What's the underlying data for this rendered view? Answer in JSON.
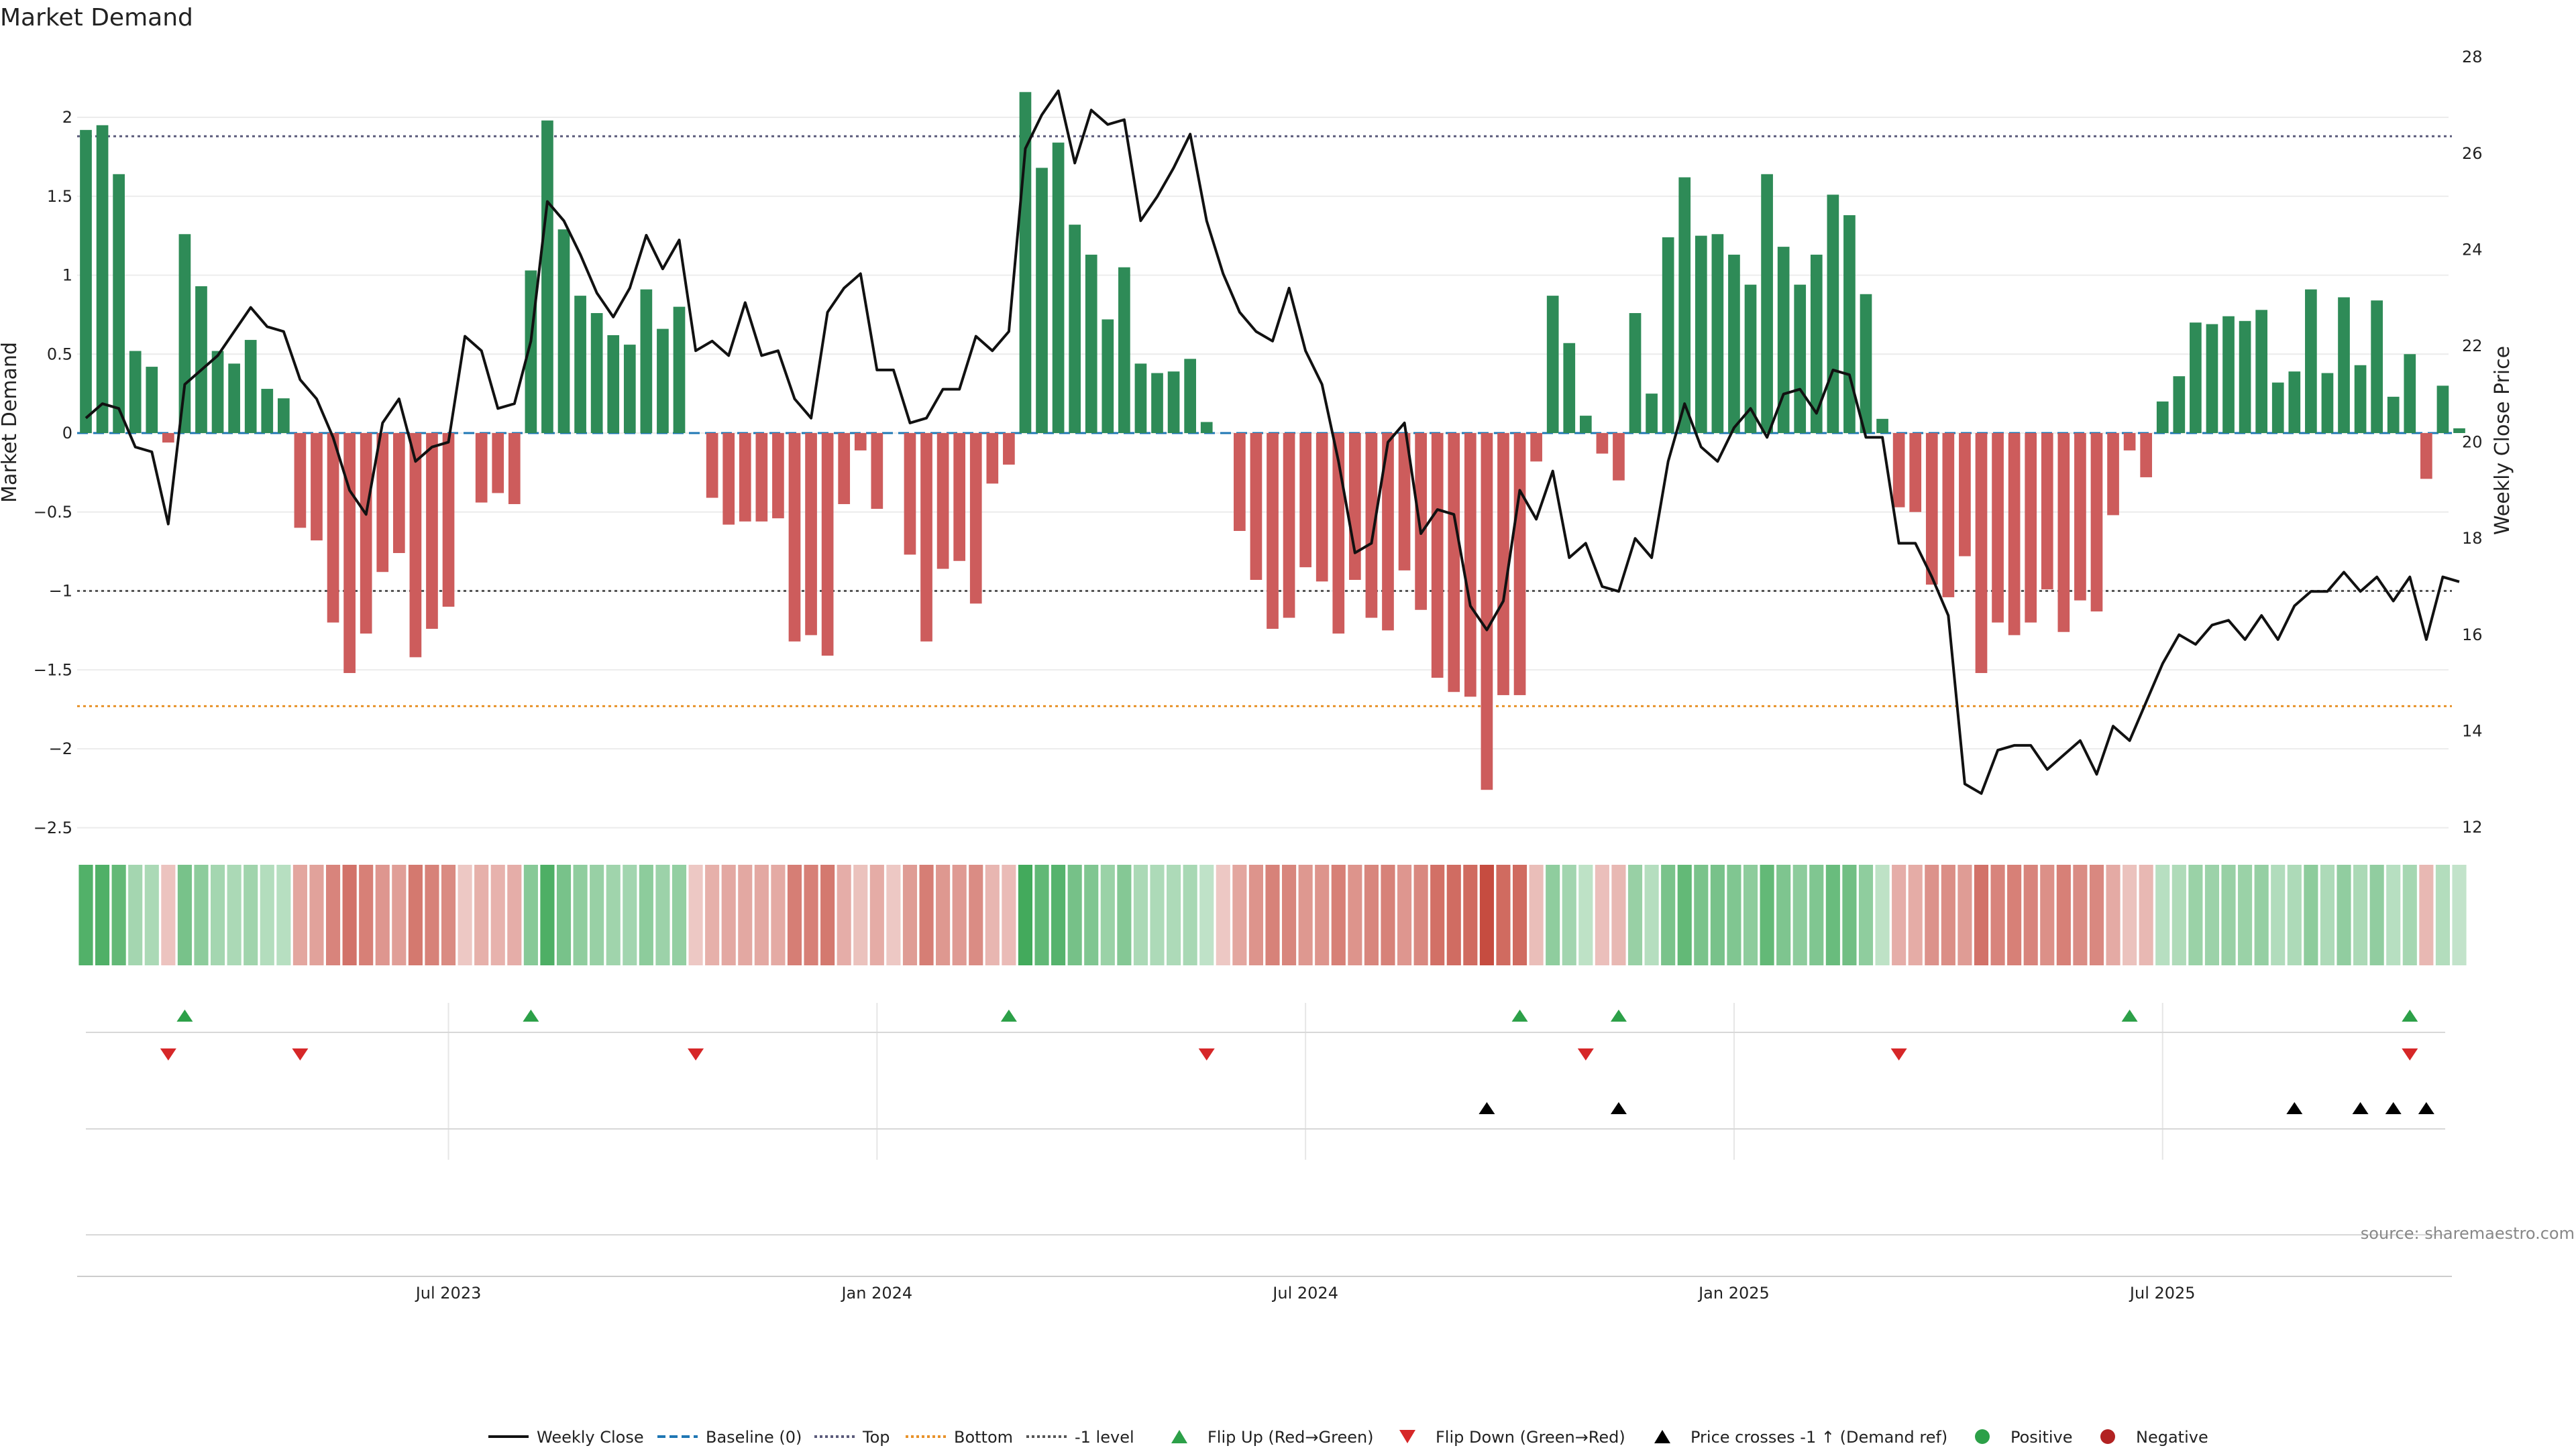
{
  "chart_data": {
    "type": "bar",
    "title": "Market Demand",
    "ylabel_left": "Market Demand",
    "ylabel_right": "Weekly Close Price",
    "ylim_left": [
      -2.5,
      2.4
    ],
    "ylim_right": [
      12,
      28
    ],
    "yticks_left": [
      "2",
      "1.5",
      "1",
      "0.5",
      "0",
      "−0.5",
      "−1",
      "−1.5",
      "−2",
      "−2.5"
    ],
    "yticks_left_values": [
      2,
      1.5,
      1,
      0.5,
      0,
      -0.5,
      -1,
      -1.5,
      -2,
      -2.5
    ],
    "yticks_right": [
      "28",
      "26",
      "24",
      "22",
      "20",
      "18",
      "16",
      "14",
      "12"
    ],
    "yticks_right_values": [
      28,
      26,
      24,
      22,
      20,
      18,
      16,
      14,
      12
    ],
    "xtick_labels": [
      "Jul 2023",
      "Jan 2024",
      "Jul 2024",
      "Jan 2025",
      "Jul 2025"
    ],
    "xtick_weeks": [
      22,
      48,
      74,
      100,
      126
    ],
    "reference_lines": {
      "top": 1.88,
      "bottom": -1.73,
      "minus_one": -1.0,
      "baseline": 0
    },
    "demand": [
      1.92,
      1.95,
      1.64,
      0.52,
      0.42,
      -0.06,
      1.26,
      0.93,
      0.52,
      0.44,
      0.59,
      0.28,
      0.22,
      -0.6,
      -0.68,
      -1.2,
      -1.52,
      -1.27,
      -0.88,
      -0.76,
      -1.42,
      -1.24,
      -1.1,
      0,
      -0.44,
      -0.38,
      -0.45,
      1.03,
      1.98,
      1.29,
      0.87,
      0.76,
      0.62,
      0.56,
      0.91,
      0.66,
      0.8,
      0,
      -0.41,
      -0.58,
      -0.56,
      -0.56,
      -0.54,
      -1.32,
      -1.28,
      -1.41,
      -0.45,
      -0.11,
      -0.48,
      0,
      -0.77,
      -1.32,
      -0.86,
      -0.81,
      -1.08,
      -0.32,
      -0.2,
      2.16,
      1.68,
      1.84,
      1.32,
      1.13,
      0.72,
      1.05,
      0.44,
      0.38,
      0.39,
      0.47,
      0.07,
      0,
      -0.62,
      -0.93,
      -1.24,
      -1.17,
      -0.85,
      -0.94,
      -1.27,
      -0.93,
      -1.17,
      -1.25,
      -0.87,
      -1.12,
      -1.55,
      -1.64,
      -1.67,
      -2.26,
      -1.66,
      -1.66,
      -0.18,
      0.87,
      0.57,
      0.11,
      -0.13,
      -0.3,
      0.76,
      0.25,
      1.24,
      1.62,
      1.25,
      1.26,
      1.13,
      0.94,
      1.64,
      1.18,
      0.94,
      1.13,
      1.51,
      1.38,
      0.88,
      0.09,
      -0.47,
      -0.5,
      -0.96,
      -1.04,
      -0.78,
      -1.52,
      -1.2,
      -1.28,
      -1.2,
      -0.99,
      -1.26,
      -1.06,
      -1.13,
      -0.52,
      -0.11,
      -0.28,
      0.2,
      0.36,
      0.7,
      0.69,
      0.74,
      0.71,
      0.78,
      0.32,
      0.39,
      0.91,
      0.38,
      0.86,
      0.43,
      0.84,
      0.23,
      0.5,
      -0.29,
      0.3,
      0.03
    ],
    "price": [
      20.5,
      20.8,
      20.7,
      19.9,
      19.8,
      18.3,
      21.2,
      21.5,
      21.8,
      22.3,
      22.8,
      22.4,
      22.3,
      21.3,
      20.9,
      20.1,
      19.0,
      18.5,
      20.4,
      20.9,
      19.6,
      19.9,
      20.0,
      22.2,
      21.9,
      20.7,
      20.8,
      22.1,
      25.0,
      24.6,
      23.9,
      23.1,
      22.6,
      23.2,
      24.3,
      23.6,
      24.2,
      21.9,
      22.1,
      21.8,
      22.9,
      21.8,
      21.9,
      20.9,
      20.5,
      22.7,
      23.2,
      23.5,
      21.5,
      21.5,
      20.4,
      20.5,
      21.1,
      21.1,
      22.2,
      21.9,
      22.3,
      26.1,
      26.8,
      27.3,
      25.8,
      26.9,
      26.6,
      26.7,
      24.6,
      25.1,
      25.7,
      26.4,
      24.6,
      23.5,
      22.7,
      22.3,
      22.1,
      23.2,
      21.9,
      21.2,
      19.6,
      17.7,
      17.9,
      20.0,
      20.4,
      18.1,
      18.6,
      18.5,
      16.6,
      16.1,
      16.7,
      19.0,
      18.4,
      19.4,
      17.6,
      17.9,
      17.0,
      16.9,
      18.0,
      17.6,
      19.6,
      20.8,
      19.9,
      19.6,
      20.3,
      20.7,
      20.1,
      21.0,
      21.1,
      20.6,
      21.5,
      21.4,
      20.1,
      20.1,
      17.9,
      17.9,
      17.2,
      16.4,
      12.9,
      12.7,
      13.6,
      13.7,
      13.7,
      13.2,
      13.5,
      13.8,
      13.1,
      14.1,
      13.8,
      14.6,
      15.4,
      16.0,
      15.8,
      16.2,
      16.3,
      15.9,
      16.4,
      15.9,
      16.6,
      16.9,
      16.9,
      17.3,
      16.9,
      17.2,
      16.7,
      17.2,
      15.9,
      17.2,
      17.1
    ],
    "flip_up_weeks": [
      6,
      27,
      56,
      87,
      93,
      124,
      141
    ],
    "flip_down_weeks": [
      5,
      13,
      37,
      68,
      91,
      110,
      141
    ],
    "price_cross_weeks": [
      85,
      93,
      134,
      138,
      140,
      142
    ],
    "legend": [
      {
        "label": "Weekly Close",
        "kind": "line-solid",
        "color": "#111111"
      },
      {
        "label": "Baseline (0)",
        "kind": "line-dash",
        "color": "#1f77b4"
      },
      {
        "label": "Top",
        "kind": "line-dot",
        "color": "#5a5a7a"
      },
      {
        "label": "Bottom",
        "kind": "line-dot",
        "color": "#e8922a"
      },
      {
        "label": "-1 level",
        "kind": "line-dot",
        "color": "#555555"
      },
      {
        "label": "Flip Up (Red→Green)",
        "kind": "tri-up",
        "color": "#2ca048"
      },
      {
        "label": "Flip Down (Green→Red)",
        "kind": "tri-down",
        "color": "#d62728"
      },
      {
        "label": "Price crosses -1 ↑ (Demand ref)",
        "kind": "tri-up",
        "color": "#000000"
      },
      {
        "label": "Positive",
        "kind": "dot",
        "color": "#2ca048"
      },
      {
        "label": "Negative",
        "kind": "dot",
        "color": "#b22222"
      }
    ],
    "colors": {
      "positive": "#2e8b57",
      "negative": "#cd5c5c",
      "heat_pos": "#2ca048",
      "heat_neg": "#c0392b"
    }
  },
  "source": "source: sharemaestro.com"
}
